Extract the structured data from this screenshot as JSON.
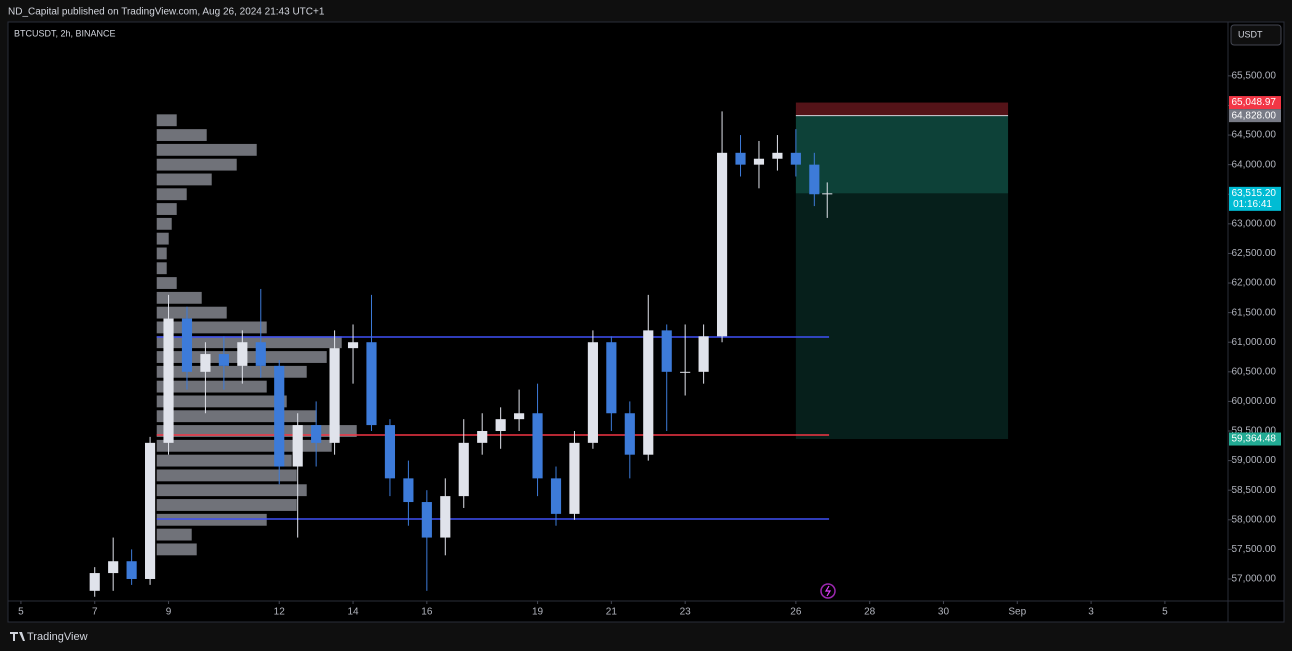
{
  "header": {
    "publisher": "ND_Capital published on TradingView.com, Aug 26, 2024 21:43 UTC+1"
  },
  "footer": {
    "brand": "TradingView"
  },
  "chart_data": {
    "type": "candlestick",
    "title": "BTCUSDT, 2h, BINANCE",
    "y_axis_unit": "USDT",
    "xlim": [
      4.65,
      37.71
    ],
    "ylim": [
      56645,
      66410
    ],
    "xticks": [
      5,
      7,
      9,
      12,
      14,
      16,
      19,
      21,
      23,
      26,
      28,
      30,
      {
        "value": 32,
        "label": "Sep"
      },
      {
        "value": 34,
        "label": "3"
      },
      {
        "value": 36,
        "label": "5"
      }
    ],
    "yticks": [
      {
        "value": 57000,
        "label": "57,000.00"
      },
      {
        "value": 57500,
        "label": "57,500.00"
      },
      {
        "value": 58000,
        "label": "58,000.00"
      },
      {
        "value": 58500,
        "label": "58,500.00"
      },
      {
        "value": 59000,
        "label": "59,000.00"
      },
      {
        "value": 59500,
        "label": "59,500.00"
      },
      {
        "value": 60000,
        "label": "60,000.00"
      },
      {
        "value": 60500,
        "label": "60,500.00"
      },
      {
        "value": 61000,
        "label": "61,000.00"
      },
      {
        "value": 61500,
        "label": "61,500.00"
      },
      {
        "value": 62000,
        "label": "62,000.00"
      },
      {
        "value": 62500,
        "label": "62,500.00"
      },
      {
        "value": 63000,
        "label": "63,000.00"
      },
      {
        "value": 63500,
        "label": "63,500.00"
      },
      {
        "value": 64000,
        "label": "64,000.00"
      },
      {
        "value": 64500,
        "label": "64,500.00"
      },
      {
        "value": 65000,
        "label": "65,000.00"
      },
      {
        "value": 65500,
        "label": "65,500.00"
      }
    ],
    "up_color": "#e0e3eb",
    "down_color": "#3d7bd9",
    "candles": {
      "x": [
        7.0,
        7.5,
        8.0,
        8.5,
        9.0,
        9.5,
        10.0,
        10.5,
        11.0,
        11.5,
        12.0,
        12.5,
        13.0,
        13.5,
        14.0,
        14.5,
        15.0,
        15.5,
        16.0,
        16.5,
        17.0,
        17.5,
        18.0,
        18.5,
        19.0,
        19.5,
        20.0,
        20.5,
        21.0,
        21.5,
        22.0,
        22.5,
        23.0,
        23.5,
        24.0,
        24.5,
        25.0,
        25.5,
        26.0,
        26.5,
        26.85
      ],
      "open": [
        56800,
        57100,
        57300,
        57000,
        59300,
        61400,
        60500,
        60800,
        60600,
        61000,
        60600,
        58900,
        59600,
        59300,
        60900,
        61000,
        59600,
        58700,
        58300,
        57700,
        58400,
        59300,
        59500,
        59700,
        59800,
        58700,
        58100,
        59300,
        61000,
        59800,
        59100,
        61200,
        60500,
        60500,
        61100,
        64200,
        64000,
        64100,
        64200,
        64000,
        63500
      ],
      "high": [
        57200,
        57700,
        57500,
        59400,
        61800,
        61600,
        61000,
        61100,
        61200,
        61900,
        60700,
        59800,
        60000,
        61200,
        61300,
        61800,
        59700,
        59000,
        58500,
        58700,
        59700,
        59800,
        59900,
        60200,
        60300,
        58900,
        59500,
        61200,
        61100,
        60000,
        61800,
        61300,
        61300,
        61300,
        64900,
        64500,
        64400,
        64500,
        64600,
        64200,
        63700
      ],
      "low": [
        56700,
        56800,
        56900,
        56900,
        59100,
        60200,
        59800,
        60200,
        60300,
        60400,
        58600,
        57700,
        58900,
        59100,
        60300,
        59500,
        58400,
        57900,
        56800,
        57400,
        58200,
        59100,
        59200,
        59500,
        58400,
        57900,
        58000,
        59200,
        59500,
        58700,
        59000,
        59500,
        60100,
        60300,
        61000,
        63800,
        63600,
        63900,
        63800,
        63300,
        63100
      ],
      "close": [
        57100,
        57300,
        57000,
        59300,
        61400,
        60500,
        60800,
        60600,
        61000,
        60600,
        58900,
        59600,
        59300,
        60900,
        61000,
        59600,
        58700,
        58300,
        57700,
        58400,
        59300,
        59500,
        59700,
        59800,
        58700,
        58100,
        59300,
        61000,
        59800,
        59100,
        61200,
        60500,
        60500,
        61100,
        64200,
        64000,
        64100,
        64200,
        64000,
        63500,
        63515.2
      ]
    },
    "volume_profile": {
      "x_start": 8.68,
      "color": "#9598a1",
      "prices": [
        57500,
        57750,
        58000,
        58250,
        58500,
        58750,
        59000,
        59250,
        59500,
        59750,
        60000,
        60250,
        60500,
        60750,
        61000,
        61250,
        61500,
        61750,
        62000,
        62250,
        62500,
        62750,
        63000,
        63250,
        63500,
        63750,
        64000,
        64250,
        64500,
        64750
      ],
      "values": [
        40,
        35,
        110,
        140,
        150,
        140,
        135,
        175,
        200,
        160,
        130,
        110,
        150,
        170,
        185,
        110,
        70,
        45,
        20,
        10,
        10,
        12,
        15,
        20,
        30,
        55,
        80,
        100,
        50,
        20
      ]
    },
    "levels": [
      {
        "price": 61089,
        "color": "#3f51f5",
        "x_start": 8.68,
        "x_end": 26.9
      },
      {
        "price": 59433,
        "color": "#f23645",
        "x_start": 8.68,
        "x_end": 26.9
      },
      {
        "price": 58014,
        "color": "#3f51f5",
        "x_start": 8.68,
        "x_end": 26.9
      }
    ],
    "position": {
      "x_start": 26.0,
      "x_end": 31.75,
      "stop": 65048.97,
      "entry": 64828,
      "current": 63515.2,
      "target": 59364.48
    },
    "price_labels": [
      {
        "value": 65048.97,
        "label": "65,048.97",
        "color": "#f23645"
      },
      {
        "value": 64828,
        "label": "64,828.00",
        "color": "#787b86"
      },
      {
        "value": 63515.2,
        "label": "63,515.20",
        "timer": "01:16:41",
        "color": "#00bcd4"
      },
      {
        "value": 59364.48,
        "label": "59,364.48",
        "color": "#22ab94"
      }
    ]
  }
}
